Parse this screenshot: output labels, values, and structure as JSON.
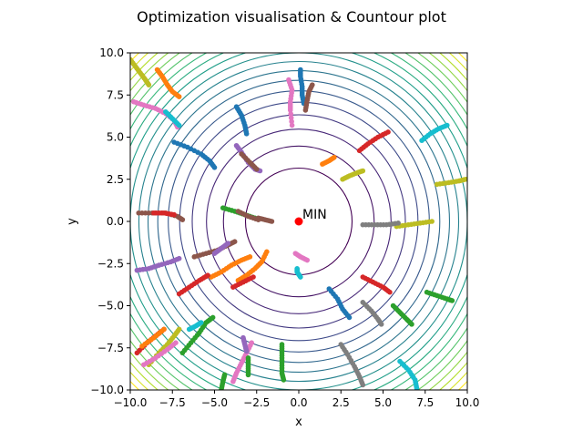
{
  "chart_data": {
    "type": "scatter",
    "title": "Optimization visualisation & Countour plot",
    "xlabel": "x",
    "ylabel": "y",
    "xlim": [
      -10,
      10
    ],
    "ylim": [
      -10,
      10
    ],
    "xticks": [
      "−10.0",
      "−7.5",
      "−5.0",
      "−2.5",
      "0.0",
      "2.5",
      "5.0",
      "7.5",
      "10.0"
    ],
    "yticks": [
      "−10.0",
      "−7.5",
      "−5.0",
      "−2.5",
      "0.0",
      "2.5",
      "5.0",
      "7.5",
      "10.0"
    ],
    "xtick_values": [
      -10,
      -7.5,
      -5,
      -2.5,
      0,
      2.5,
      5,
      7.5,
      10
    ],
    "ytick_values": [
      -10,
      -7.5,
      -5,
      -2.5,
      0,
      2.5,
      5,
      7.5,
      10
    ],
    "grid": false,
    "contours": {
      "function": "x^2 + y^2",
      "levels": [
        10,
        20,
        30,
        40,
        50,
        60,
        70,
        80,
        90,
        100,
        110,
        120,
        130,
        140,
        150,
        160,
        170,
        180,
        190
      ],
      "colormap": "viridis"
    },
    "minimum": {
      "label": "MIN",
      "x": 0,
      "y": 0,
      "color": "#ff0000"
    },
    "trajectories": [
      {
        "color": "#bcbd22",
        "points": [
          [
            -10,
            9.6
          ],
          [
            -9.7,
            9.2
          ],
          [
            -9.4,
            8.8
          ],
          [
            -9.1,
            8.4
          ],
          [
            -8.9,
            8.1
          ]
        ]
      },
      {
        "color": "#ff7f0e",
        "points": [
          [
            -8.4,
            9.0
          ],
          [
            -8.1,
            8.6
          ],
          [
            -7.8,
            8.1
          ],
          [
            -7.5,
            7.7
          ],
          [
            -7.1,
            7.4
          ]
        ]
      },
      {
        "color": "#e377c2",
        "points": [
          [
            -9.8,
            7.1
          ],
          [
            -9.2,
            6.9
          ],
          [
            -8.5,
            6.7
          ],
          [
            -7.9,
            6.4
          ],
          [
            -7.4,
            6.0
          ],
          [
            -7.2,
            5.6
          ]
        ]
      },
      {
        "color": "#17becf",
        "points": [
          [
            -7.9,
            6.5
          ],
          [
            -7.5,
            6.1
          ],
          [
            -7.1,
            5.7
          ]
        ]
      },
      {
        "color": "#1f77b4",
        "points": [
          [
            -7.4,
            4.7
          ],
          [
            -6.6,
            4.4
          ],
          [
            -5.8,
            4.0
          ],
          [
            -5.3,
            3.6
          ],
          [
            -5.0,
            3.2
          ]
        ]
      },
      {
        "color": "#1f77b4",
        "points": [
          [
            -3.7,
            6.8
          ],
          [
            -3.4,
            6.3
          ],
          [
            -3.2,
            5.7
          ],
          [
            -3.1,
            5.2
          ]
        ]
      },
      {
        "color": "#9467bd",
        "points": [
          [
            -3.7,
            4.5
          ],
          [
            -3.4,
            4.1
          ],
          [
            -3.0,
            3.5
          ],
          [
            -2.6,
            3.1
          ],
          [
            -2.3,
            3.0
          ]
        ]
      },
      {
        "color": "#8c564b",
        "points": [
          [
            -3.4,
            4.0
          ],
          [
            -2.9,
            3.5
          ],
          [
            -2.5,
            3.1
          ]
        ]
      },
      {
        "color": "#e377c2",
        "points": [
          [
            -0.6,
            8.4
          ],
          [
            -0.4,
            7.8
          ],
          [
            -0.5,
            7.1
          ],
          [
            -0.5,
            6.6
          ],
          [
            -0.4,
            5.7
          ]
        ]
      },
      {
        "color": "#1f77b4",
        "points": [
          [
            0.1,
            9.0
          ],
          [
            0.1,
            8.6
          ],
          [
            0.2,
            8.0
          ],
          [
            0.2,
            7.5
          ],
          [
            0.3,
            7.0
          ]
        ]
      },
      {
        "color": "#8c564b",
        "points": [
          [
            0.8,
            8.1
          ],
          [
            0.6,
            7.7
          ],
          [
            0.5,
            7.2
          ],
          [
            0.4,
            6.6
          ]
        ]
      },
      {
        "color": "#ff7f0e",
        "points": [
          [
            1.4,
            3.4
          ],
          [
            1.8,
            3.6
          ],
          [
            2.1,
            3.8
          ]
        ]
      },
      {
        "color": "#bcbd22",
        "points": [
          [
            2.6,
            2.5
          ],
          [
            3.0,
            2.7
          ],
          [
            3.5,
            2.9
          ],
          [
            3.8,
            3.0
          ]
        ]
      },
      {
        "color": "#d62728",
        "points": [
          [
            3.6,
            4.2
          ],
          [
            4.1,
            4.6
          ],
          [
            4.7,
            5.0
          ],
          [
            5.3,
            5.3
          ]
        ]
      },
      {
        "color": "#17becf",
        "points": [
          [
            7.3,
            4.8
          ],
          [
            7.8,
            5.2
          ],
          [
            8.3,
            5.5
          ],
          [
            8.8,
            5.7
          ]
        ]
      },
      {
        "color": "#bcbd22",
        "points": [
          [
            8.2,
            2.2
          ],
          [
            8.9,
            2.3
          ],
          [
            9.5,
            2.4
          ],
          [
            9.9,
            2.5
          ]
        ]
      },
      {
        "color": "#bcbd22",
        "points": [
          [
            5.8,
            -0.3
          ],
          [
            6.5,
            -0.2
          ],
          [
            7.2,
            -0.1
          ],
          [
            7.9,
            0
          ]
        ]
      },
      {
        "color": "#7f7f7f",
        "points": [
          [
            3.8,
            -0.2
          ],
          [
            4.5,
            -0.2
          ],
          [
            5.2,
            -0.2
          ],
          [
            5.9,
            -0.1
          ]
        ]
      },
      {
        "color": "#2ca02c",
        "points": [
          [
            -4.5,
            0.8
          ],
          [
            -3.8,
            0.6
          ],
          [
            -3.2,
            0.4
          ],
          [
            -2.6,
            0.2
          ]
        ]
      },
      {
        "color": "#8c564b",
        "points": [
          [
            -3.6,
            0.6
          ],
          [
            -3.0,
            0.3
          ],
          [
            -2.4,
            0.1
          ]
        ]
      },
      {
        "color": "#8c564b",
        "points": [
          [
            -2.4,
            0.2
          ],
          [
            -2.0,
            0.1
          ],
          [
            -1.6,
            0.0
          ]
        ]
      },
      {
        "color": "#8c564b",
        "points": [
          [
            -9.5,
            0.5
          ],
          [
            -8.7,
            0.5
          ],
          [
            -7.9,
            0.5
          ],
          [
            -7.2,
            0.3
          ],
          [
            -6.9,
            0.1
          ]
        ]
      },
      {
        "color": "#d62728",
        "points": [
          [
            -8.6,
            0.5
          ],
          [
            -8.0,
            0.5
          ],
          [
            -7.4,
            0.4
          ]
        ]
      },
      {
        "color": "#8c564b",
        "points": [
          [
            -6.2,
            -2.1
          ],
          [
            -5.5,
            -1.9
          ],
          [
            -4.8,
            -1.7
          ],
          [
            -4.2,
            -1.4
          ],
          [
            -3.8,
            -1.2
          ]
        ]
      },
      {
        "color": "#9467bd",
        "points": [
          [
            -5.0,
            -1.9
          ],
          [
            -4.6,
            -1.6
          ],
          [
            -4.2,
            -1.3
          ]
        ]
      },
      {
        "color": "#9467bd",
        "points": [
          [
            -9.6,
            -2.9
          ],
          [
            -8.9,
            -2.8
          ],
          [
            -8.3,
            -2.6
          ],
          [
            -7.6,
            -2.4
          ],
          [
            -7.1,
            -2.2
          ]
        ]
      },
      {
        "color": "#ff7f0e",
        "points": [
          [
            -5.2,
            -3.3
          ],
          [
            -4.6,
            -3.0
          ],
          [
            -4.0,
            -2.6
          ],
          [
            -3.4,
            -2.3
          ],
          [
            -2.9,
            -2.1
          ]
        ]
      },
      {
        "color": "#ff7f0e",
        "points": [
          [
            -3.6,
            -3.5
          ],
          [
            -3.1,
            -3.2
          ],
          [
            -2.6,
            -2.8
          ],
          [
            -2.2,
            -2.4
          ],
          [
            -1.9,
            -1.8
          ]
        ]
      },
      {
        "color": "#d62728",
        "points": [
          [
            -3.9,
            -3.9
          ],
          [
            -3.3,
            -3.6
          ],
          [
            -2.7,
            -3.3
          ]
        ]
      },
      {
        "color": "#d62728",
        "points": [
          [
            -7.1,
            -4.3
          ],
          [
            -6.5,
            -3.9
          ],
          [
            -5.9,
            -3.5
          ],
          [
            -5.4,
            -3.2
          ]
        ]
      },
      {
        "color": "#e377c2",
        "points": [
          [
            -0.2,
            -1.9
          ],
          [
            0.1,
            -2.1
          ],
          [
            0.5,
            -2.3
          ]
        ]
      },
      {
        "color": "#17becf",
        "points": [
          [
            -0.1,
            -2.8
          ],
          [
            -0.1,
            -3.0
          ],
          [
            0.1,
            -3.3
          ]
        ]
      },
      {
        "color": "#1f77b4",
        "points": [
          [
            1.8,
            -4.0
          ],
          [
            2.3,
            -4.6
          ],
          [
            2.6,
            -5.2
          ],
          [
            3.0,
            -5.7
          ]
        ]
      },
      {
        "color": "#d62728",
        "points": [
          [
            3.8,
            -3.3
          ],
          [
            4.4,
            -3.6
          ],
          [
            5.0,
            -3.9
          ],
          [
            5.4,
            -4.2
          ]
        ]
      },
      {
        "color": "#7f7f7f",
        "points": [
          [
            3.8,
            -4.8
          ],
          [
            4.3,
            -5.3
          ],
          [
            4.7,
            -5.8
          ],
          [
            4.9,
            -6.1
          ]
        ]
      },
      {
        "color": "#2ca02c",
        "points": [
          [
            5.6,
            -5.0
          ],
          [
            6.0,
            -5.4
          ],
          [
            6.4,
            -5.8
          ],
          [
            6.7,
            -6.1
          ]
        ]
      },
      {
        "color": "#2ca02c",
        "points": [
          [
            7.6,
            -4.2
          ],
          [
            8.2,
            -4.4
          ],
          [
            8.8,
            -4.6
          ],
          [
            9.1,
            -4.7
          ]
        ]
      },
      {
        "color": "#7f7f7f",
        "points": [
          [
            2.5,
            -7.3
          ],
          [
            2.9,
            -7.9
          ],
          [
            3.3,
            -8.6
          ],
          [
            3.6,
            -9.2
          ],
          [
            3.8,
            -9.7
          ]
        ]
      },
      {
        "color": "#17becf",
        "points": [
          [
            6.0,
            -8.3
          ],
          [
            6.5,
            -8.8
          ],
          [
            6.9,
            -9.4
          ],
          [
            7.0,
            -9.9
          ]
        ]
      },
      {
        "color": "#2ca02c",
        "points": [
          [
            -1.0,
            -7.3
          ],
          [
            -1.0,
            -7.8
          ],
          [
            -1.0,
            -8.4
          ],
          [
            -1.0,
            -9.0
          ],
          [
            -0.9,
            -9.4
          ]
        ]
      },
      {
        "color": "#e377c2",
        "points": [
          [
            -2.8,
            -7.2
          ],
          [
            -3.1,
            -7.8
          ],
          [
            -3.4,
            -8.4
          ],
          [
            -3.7,
            -9.0
          ],
          [
            -3.9,
            -9.5
          ]
        ]
      },
      {
        "color": "#9467bd",
        "points": [
          [
            -3.3,
            -6.9
          ],
          [
            -3.2,
            -7.3
          ],
          [
            -3.1,
            -7.7
          ]
        ]
      },
      {
        "color": "#2ca02c",
        "points": [
          [
            -3.0,
            -8.1
          ],
          [
            -3.0,
            -8.6
          ],
          [
            -3.0,
            -9.1
          ]
        ]
      },
      {
        "color": "#2ca02c",
        "points": [
          [
            -4.6,
            -10.0
          ],
          [
            -4.5,
            -9.5
          ],
          [
            -4.4,
            -9.1
          ]
        ]
      },
      {
        "color": "#2ca02c",
        "points": [
          [
            -6.9,
            -7.8
          ],
          [
            -6.4,
            -7.2
          ],
          [
            -5.9,
            -6.6
          ],
          [
            -5.5,
            -6.0
          ],
          [
            -5.1,
            -5.7
          ]
        ]
      },
      {
        "color": "#17becf",
        "points": [
          [
            -6.5,
            -6.4
          ],
          [
            -6.1,
            -6.2
          ],
          [
            -5.8,
            -6.0
          ]
        ]
      },
      {
        "color": "#bcbd22",
        "points": [
          [
            -8.9,
            -8.5
          ],
          [
            -8.3,
            -7.8
          ],
          [
            -7.8,
            -7.3
          ],
          [
            -7.4,
            -6.8
          ],
          [
            -7.1,
            -6.4
          ]
        ]
      },
      {
        "color": "#e377c2",
        "points": [
          [
            -9.2,
            -8.5
          ],
          [
            -8.5,
            -8.1
          ],
          [
            -7.8,
            -7.6
          ],
          [
            -7.3,
            -7.2
          ]
        ]
      },
      {
        "color": "#d62728",
        "points": [
          [
            -9.6,
            -7.8
          ],
          [
            -9.0,
            -7.2
          ],
          [
            -8.5,
            -6.8
          ],
          [
            -8.0,
            -6.4
          ]
        ]
      },
      {
        "color": "#ff7f0e",
        "points": [
          [
            -9.3,
            -7.4
          ],
          [
            -8.6,
            -6.9
          ],
          [
            -8.0,
            -6.4
          ]
        ]
      }
    ]
  }
}
